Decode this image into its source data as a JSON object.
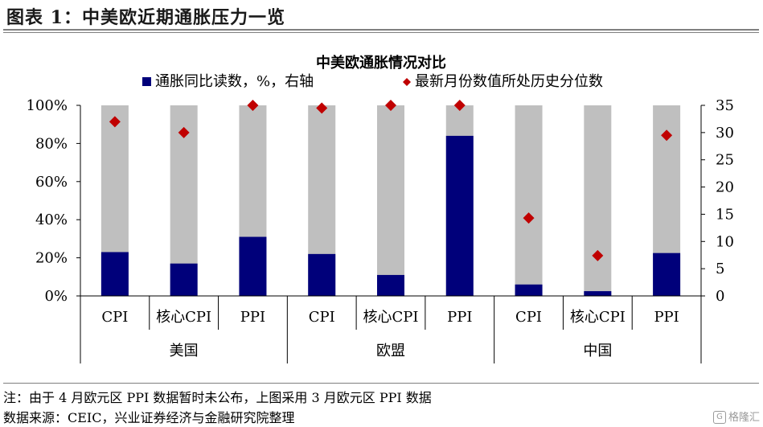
{
  "figure_title": "图表 1：中美欧近期通胀压力一览",
  "chart_data": {
    "type": "bar",
    "title": "中美欧通胀情况对比",
    "categories": [
      "CPI",
      "核心CPI",
      "PPI",
      "CPI",
      "核心CPI",
      "PPI",
      "CPI",
      "核心CPI",
      "PPI"
    ],
    "groups": [
      {
        "label": "美国",
        "span": 3
      },
      {
        "label": "欧盟",
        "span": 3
      },
      {
        "label": "中国",
        "span": 3
      }
    ],
    "series": [
      {
        "name": "通胀同比读数，%，右轴",
        "kind": "bar",
        "axis": "left",
        "color": "#00007a",
        "values": [
          23,
          17,
          31,
          22,
          11,
          84,
          6,
          2.5,
          22.5
        ]
      },
      {
        "name": "最新月份数值所处历史分位数",
        "kind": "scatter",
        "axis": "right",
        "color": "#c00000",
        "values": [
          32,
          30,
          35,
          34.5,
          35,
          35,
          14.3,
          7.4,
          29.5
        ]
      }
    ],
    "background_bar_value": 100,
    "background_color": "#bfbfbf",
    "y_left": {
      "ticks": [
        "0%",
        "20%",
        "40%",
        "60%",
        "80%",
        "100%"
      ],
      "lim": [
        0,
        100
      ]
    },
    "y_right": {
      "ticks": [
        "0",
        "5",
        "10",
        "15",
        "20",
        "25",
        "30",
        "35"
      ],
      "lim": [
        0,
        35
      ]
    },
    "legend_position": "top",
    "grid": false
  },
  "footnotes": {
    "note": "注：由于 4 月欧元区 PPI 数据暂时未公布，上图采用 3 月欧元区 PPI 数据",
    "source": "数据来源：CEIC，兴业证券经济与金融研究院整理"
  },
  "watermark": {
    "icon": "gelonghui-logo-icon",
    "text": "格隆汇"
  }
}
